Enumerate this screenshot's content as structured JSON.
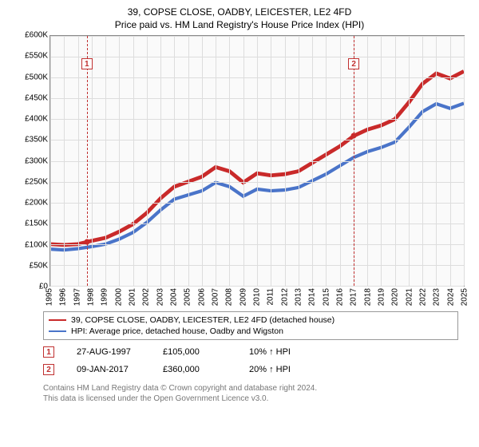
{
  "title": {
    "main": "39, COPSE CLOSE, OADBY, LEICESTER, LE2 4FD",
    "sub": "Price paid vs. HM Land Registry's House Price Index (HPI)"
  },
  "chart": {
    "type": "line",
    "background_color": "#fafafa",
    "grid_color": "#dddddd",
    "border_color": "#888888",
    "y": {
      "min": 0,
      "max": 600000,
      "step": 50000,
      "ticks": [
        "£0",
        "£50K",
        "£100K",
        "£150K",
        "£200K",
        "£250K",
        "£300K",
        "£350K",
        "£400K",
        "£450K",
        "£500K",
        "£550K",
        "£600K"
      ]
    },
    "x": {
      "min": 1995,
      "max": 2025,
      "step": 1,
      "ticks": [
        "1995",
        "1996",
        "1997",
        "1998",
        "1999",
        "2000",
        "2001",
        "2002",
        "2003",
        "2004",
        "2005",
        "2006",
        "2007",
        "2008",
        "2009",
        "2010",
        "2011",
        "2012",
        "2013",
        "2014",
        "2015",
        "2016",
        "2017",
        "2018",
        "2019",
        "2020",
        "2021",
        "2022",
        "2023",
        "2024",
        "2025"
      ]
    },
    "series": [
      {
        "name": "price_paid",
        "label": "39, COPSE CLOSE, OADBY, LEICESTER, LE2 4FD (detached house)",
        "color": "#c92a2a",
        "line_width": 1.6,
        "points": [
          [
            1995,
            100000
          ],
          [
            1996,
            98000
          ],
          [
            1997,
            100000
          ],
          [
            1997.65,
            105000
          ],
          [
            1998,
            108000
          ],
          [
            1999,
            115000
          ],
          [
            2000,
            130000
          ],
          [
            2001,
            148000
          ],
          [
            2002,
            175000
          ],
          [
            2003,
            210000
          ],
          [
            2004,
            238000
          ],
          [
            2005,
            250000
          ],
          [
            2006,
            262000
          ],
          [
            2007,
            285000
          ],
          [
            2008,
            275000
          ],
          [
            2009,
            248000
          ],
          [
            2010,
            270000
          ],
          [
            2011,
            265000
          ],
          [
            2012,
            268000
          ],
          [
            2013,
            275000
          ],
          [
            2014,
            295000
          ],
          [
            2015,
            315000
          ],
          [
            2016,
            335000
          ],
          [
            2017.02,
            360000
          ],
          [
            2018,
            375000
          ],
          [
            2019,
            385000
          ],
          [
            2020,
            400000
          ],
          [
            2021,
            440000
          ],
          [
            2022,
            485000
          ],
          [
            2023,
            510000
          ],
          [
            2024,
            498000
          ],
          [
            2025,
            515000
          ]
        ]
      },
      {
        "name": "hpi",
        "label": "HPI: Average price, detached house, Oadby and Wigston",
        "color": "#4a74c9",
        "line_width": 1.4,
        "points": [
          [
            1995,
            88000
          ],
          [
            1996,
            86000
          ],
          [
            1997,
            89000
          ],
          [
            1998,
            94000
          ],
          [
            1999,
            100000
          ],
          [
            2000,
            112000
          ],
          [
            2001,
            128000
          ],
          [
            2002,
            152000
          ],
          [
            2003,
            182000
          ],
          [
            2004,
            208000
          ],
          [
            2005,
            218000
          ],
          [
            2006,
            228000
          ],
          [
            2007,
            248000
          ],
          [
            2008,
            238000
          ],
          [
            2009,
            215000
          ],
          [
            2010,
            232000
          ],
          [
            2011,
            228000
          ],
          [
            2012,
            230000
          ],
          [
            2013,
            236000
          ],
          [
            2014,
            252000
          ],
          [
            2015,
            268000
          ],
          [
            2016,
            288000
          ],
          [
            2017,
            308000
          ],
          [
            2018,
            322000
          ],
          [
            2019,
            332000
          ],
          [
            2020,
            345000
          ],
          [
            2021,
            380000
          ],
          [
            2022,
            418000
          ],
          [
            2023,
            437000
          ],
          [
            2024,
            426000
          ],
          [
            2025,
            438000
          ]
        ]
      }
    ],
    "markers": [
      {
        "id": "1",
        "year": 1997.65,
        "value": 105000,
        "date": "27-AUG-1997",
        "price": "£105,000",
        "delta": "10% ↑ HPI",
        "badge_top_pct": 9
      },
      {
        "id": "2",
        "year": 2017.02,
        "value": 360000,
        "date": "09-JAN-2017",
        "price": "£360,000",
        "delta": "20% ↑ HPI",
        "badge_top_pct": 9
      }
    ],
    "dot_color": "#c92a2a"
  },
  "legend": {
    "rows": [
      {
        "color": "#c92a2a",
        "label_path": "chart.series.0.label"
      },
      {
        "color": "#4a74c9",
        "label_path": "chart.series.1.label"
      }
    ]
  },
  "footer": {
    "line1": "Contains HM Land Registry data © Crown copyright and database right 2024.",
    "line2": "This data is licensed under the Open Government Licence v3.0."
  }
}
